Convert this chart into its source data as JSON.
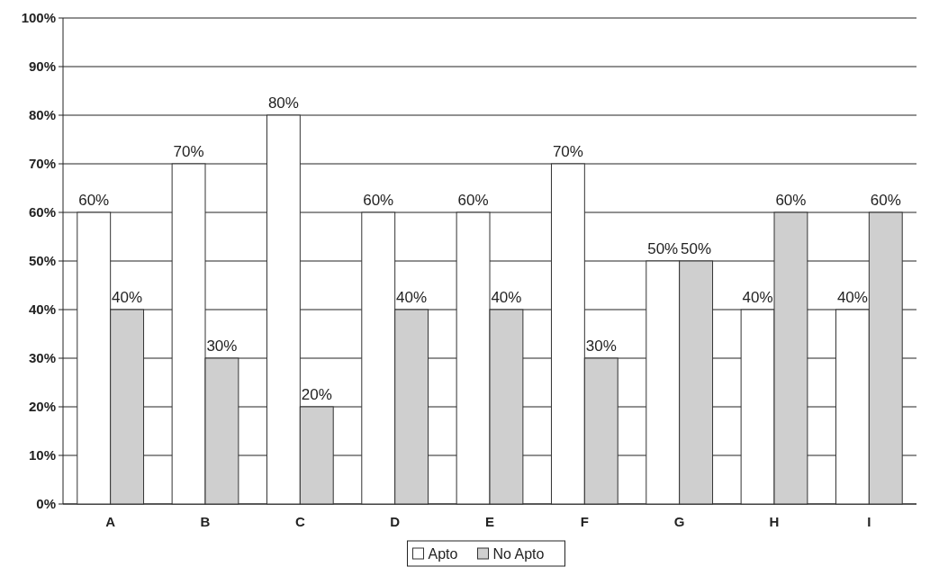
{
  "chart_data": {
    "type": "bar",
    "categories": [
      "A",
      "B",
      "C",
      "D",
      "E",
      "F",
      "G",
      "H",
      "I"
    ],
    "series": [
      {
        "name": "Apto",
        "color": "#ffffff",
        "values": [
          60,
          70,
          80,
          60,
          60,
          70,
          50,
          40,
          40
        ],
        "value_labels": [
          "60%",
          "70%",
          "80%",
          "60%",
          "60%",
          "70%",
          "50%",
          "40%",
          "40%"
        ]
      },
      {
        "name": "No Apto",
        "color": "#cfcfcf",
        "values": [
          40,
          30,
          20,
          40,
          40,
          30,
          50,
          60,
          60
        ],
        "value_labels": [
          "40%",
          "30%",
          "20%",
          "40%",
          "40%",
          "30%",
          "50%",
          "60%",
          "60%"
        ]
      }
    ],
    "ylim": [
      0,
      100
    ],
    "yticks": [
      {
        "value": 0,
        "label": "0%"
      },
      {
        "value": 10,
        "label": "10%"
      },
      {
        "value": 20,
        "label": "20%"
      },
      {
        "value": 30,
        "label": "30%"
      },
      {
        "value": 40,
        "label": "40%"
      },
      {
        "value": 50,
        "label": "50%"
      },
      {
        "value": 60,
        "label": "60%"
      },
      {
        "value": 70,
        "label": "70%"
      },
      {
        "value": 80,
        "label": "80%"
      },
      {
        "value": 90,
        "label": "90%"
      },
      {
        "value": 100,
        "label": "100%"
      }
    ],
    "grid": "y",
    "legend": "bottom"
  }
}
